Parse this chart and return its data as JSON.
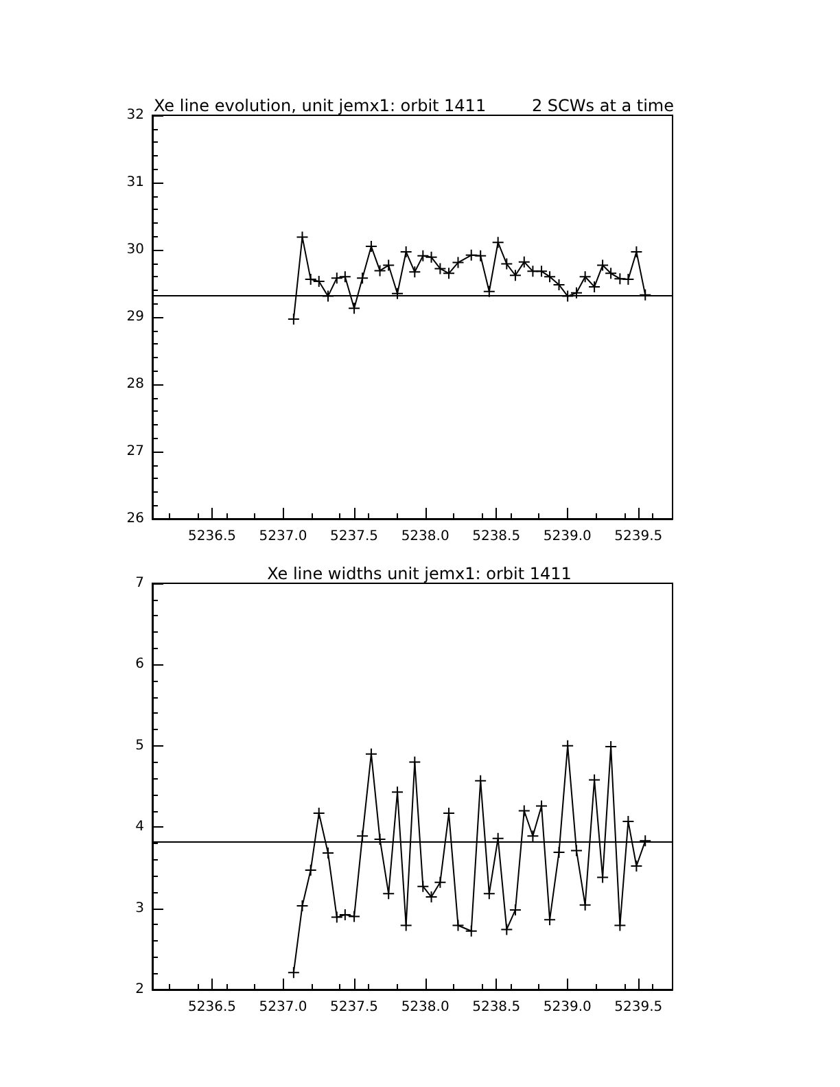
{
  "chart_data": [
    {
      "type": "line",
      "title": "Xe line evolution, unit jemx1: orbit 1411",
      "subtitle": "2 SCWs at a time",
      "x": [
        5237.074,
        5237.135,
        5237.194,
        5237.252,
        5237.316,
        5237.378,
        5237.436,
        5237.5,
        5237.558,
        5237.62,
        5237.681,
        5237.742,
        5237.804,
        5237.865,
        5237.926,
        5237.984,
        5238.043,
        5238.105,
        5238.166,
        5238.231,
        5238.324,
        5238.389,
        5238.45,
        5238.512,
        5238.573,
        5238.634,
        5238.696,
        5238.757,
        5238.818,
        5238.876,
        5238.941,
        5239.002,
        5239.064,
        5239.125,
        5239.19,
        5239.248,
        5239.306,
        5239.37,
        5239.428,
        5239.486,
        5239.548
      ],
      "series": [
        {
          "color": "#000000",
          "values": [
            28.97,
            30.19,
            29.56,
            29.53,
            29.31,
            29.58,
            29.6,
            29.13,
            29.58,
            30.05,
            29.69,
            29.77,
            29.35,
            29.97,
            29.67,
            29.91,
            29.89,
            29.72,
            29.65,
            29.81,
            29.92,
            29.91,
            29.38,
            30.11,
            29.79,
            29.62,
            29.82,
            29.68,
            29.68,
            29.6,
            29.48,
            29.31,
            29.36,
            29.6,
            29.45,
            29.77,
            29.65,
            29.57,
            29.56,
            29.97,
            29.33
          ]
        }
      ],
      "xlim": [
        5236.08,
        5239.74
      ],
      "xticks": [
        {
          "value": 5236.5,
          "label": "5236.5"
        },
        {
          "value": 5237,
          "label": "5237.0"
        },
        {
          "value": 5237.5,
          "label": "5237.5"
        },
        {
          "value": 5238,
          "label": "5238.0"
        },
        {
          "value": 5238.5,
          "label": "5238.5"
        },
        {
          "value": 5239,
          "label": "5239.0"
        },
        {
          "value": 5239.5,
          "label": "5239.5"
        }
      ],
      "ylim": [
        26,
        32
      ],
      "yticks": [
        26,
        27,
        28,
        29,
        30,
        31,
        32
      ],
      "ref_lines": [
        {
          "axis": "y",
          "value": 29.33,
          "color": "#000000"
        }
      ],
      "marker": "cross",
      "grid": false
    },
    {
      "type": "line",
      "title": "Xe line widths unit jemx1: orbit 1411",
      "x": [
        5237.074,
        5237.135,
        5237.194,
        5237.252,
        5237.316,
        5237.378,
        5237.436,
        5237.5,
        5237.558,
        5237.62,
        5237.681,
        5237.742,
        5237.804,
        5237.865,
        5237.926,
        5237.984,
        5238.043,
        5238.105,
        5238.166,
        5238.231,
        5238.324,
        5238.389,
        5238.45,
        5238.512,
        5238.573,
        5238.634,
        5238.696,
        5238.757,
        5238.818,
        5238.876,
        5238.941,
        5239.002,
        5239.064,
        5239.125,
        5239.19,
        5239.248,
        5239.306,
        5239.37,
        5239.428,
        5239.486,
        5239.548
      ],
      "series": [
        {
          "color": "#000000",
          "values": [
            2.21,
            3.03,
            3.47,
            4.17,
            3.68,
            2.89,
            2.92,
            2.9,
            3.89,
            4.9,
            3.85,
            3.18,
            4.43,
            2.79,
            4.8,
            3.27,
            3.14,
            3.32,
            4.17,
            2.79,
            2.72,
            4.57,
            3.18,
            3.86,
            2.74,
            2.98,
            4.2,
            3.89,
            4.26,
            2.86,
            3.69,
            5.0,
            3.71,
            3.04,
            4.58,
            3.38,
            4.99,
            2.79,
            4.07,
            3.52,
            3.83
          ]
        }
      ],
      "xlim": [
        5236.08,
        5239.74
      ],
      "xticks": [
        {
          "value": 5236.5,
          "label": "5236.5"
        },
        {
          "value": 5237,
          "label": "5237.0"
        },
        {
          "value": 5237.5,
          "label": "5237.5"
        },
        {
          "value": 5238,
          "label": "5238.0"
        },
        {
          "value": 5238.5,
          "label": "5238.5"
        },
        {
          "value": 5239,
          "label": "5239.0"
        },
        {
          "value": 5239.5,
          "label": "5239.5"
        }
      ],
      "ylim": [
        2,
        7
      ],
      "yticks": [
        2,
        3,
        4,
        5,
        6,
        7
      ],
      "ref_lines": [
        {
          "axis": "y",
          "value": 3.82,
          "color": "#000000"
        }
      ],
      "marker": "cross",
      "grid": false
    }
  ]
}
